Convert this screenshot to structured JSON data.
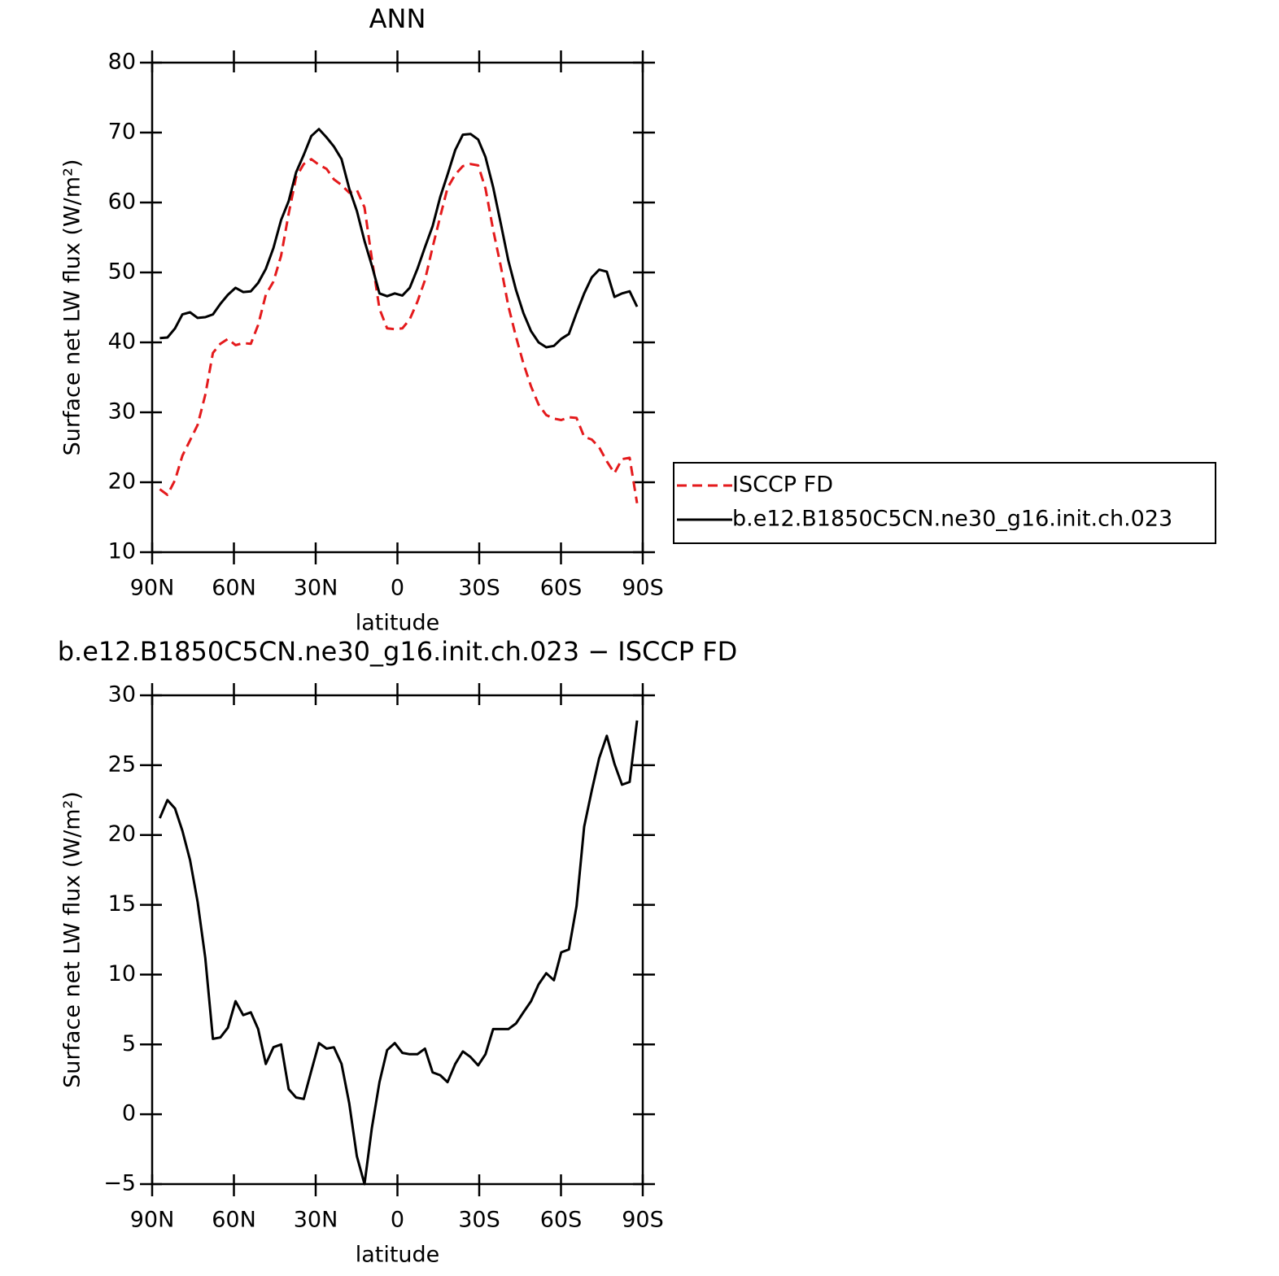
{
  "chart_data": [
    {
      "type": "line",
      "title": "ANN",
      "xlabel": "latitude",
      "ylabel": "Surface net LW flux (W/m²)",
      "x": [
        87.2,
        84.4,
        81.6,
        78.9,
        76.1,
        73.3,
        70.5,
        67.7,
        65.0,
        62.2,
        59.4,
        56.6,
        53.8,
        51.1,
        48.3,
        45.5,
        42.7,
        39.9,
        37.2,
        34.4,
        31.6,
        28.8,
        26.0,
        23.3,
        20.5,
        17.7,
        14.9,
        12.1,
        9.4,
        6.6,
        3.8,
        1.0,
        -1.8,
        -4.5,
        -7.3,
        -10.1,
        -12.9,
        -15.7,
        -18.4,
        -21.2,
        -24.0,
        -26.8,
        -29.6,
        -32.3,
        -35.1,
        -37.9,
        -40.7,
        -43.5,
        -46.2,
        -49.0,
        -51.8,
        -54.6,
        -57.4,
        -60.1,
        -62.9,
        -65.7,
        -68.5,
        -71.3,
        -74.0,
        -76.8,
        -79.6,
        -82.4,
        -85.2,
        -87.9
      ],
      "series": [
        {
          "name": "ISCCP FD",
          "color": "#e41a1c",
          "style": "dashed",
          "values": [
            19.0,
            18.2,
            20.3,
            23.8,
            26.0,
            28.2,
            32.5,
            38.5,
            39.8,
            40.5,
            39.6,
            39.9,
            39.8,
            42.5,
            46.8,
            48.7,
            52.4,
            58.4,
            63.6,
            65.5,
            66.2,
            65.4,
            64.8,
            63.3,
            62.5,
            61.4,
            61.8,
            59.3,
            52.0,
            44.8,
            42.0,
            41.9,
            42.0,
            43.3,
            45.8,
            48.9,
            53.6,
            58.0,
            62.1,
            64.0,
            65.2,
            65.5,
            65.3,
            62.0,
            56.1,
            50.9,
            45.2,
            40.8,
            37.0,
            33.7,
            31.1,
            29.6,
            29.1,
            28.9,
            29.3,
            29.2,
            26.5,
            26.1,
            25.0,
            23.0,
            21.3,
            23.3,
            23.5,
            17.0
          ]
        },
        {
          "name": "b.e12.B1850C5CN.ne30_g16.init.ch.023",
          "color": "#000000",
          "style": "solid",
          "values": [
            40.6,
            40.7,
            42.0,
            44.0,
            44.3,
            43.5,
            43.6,
            44.0,
            45.5,
            46.8,
            47.8,
            47.2,
            47.3,
            48.5,
            50.5,
            53.5,
            57.5,
            60.2,
            64.3,
            66.8,
            69.5,
            70.5,
            69.3,
            68.0,
            66.2,
            62.0,
            58.8,
            54.5,
            51.0,
            47.0,
            46.6,
            47.0,
            46.7,
            47.8,
            50.5,
            53.6,
            56.6,
            60.8,
            64.0,
            67.5,
            69.7,
            69.8,
            69.0,
            66.5,
            62.2,
            57.0,
            51.7,
            47.5,
            44.2,
            41.6,
            40.0,
            39.3,
            39.5,
            40.5,
            41.2,
            44.2,
            47.0,
            49.3,
            50.4,
            50.1,
            46.5,
            47.0,
            47.3,
            45.1
          ]
        }
      ],
      "xlim": [
        90,
        -90
      ],
      "xticks": [
        {
          "value": 90,
          "label": "90N"
        },
        {
          "value": 60,
          "label": "60N"
        },
        {
          "value": 30,
          "label": "30N"
        },
        0,
        {
          "value": -30,
          "label": "30S"
        },
        {
          "value": -60,
          "label": "60S"
        },
        {
          "value": -90,
          "label": "90S"
        }
      ],
      "ylim": [
        10,
        80
      ],
      "yticks": [
        10,
        20,
        30,
        40,
        50,
        60,
        70,
        80
      ],
      "legend": "right",
      "grid": false
    },
    {
      "type": "line",
      "title": "b.e12.B1850C5CN.ne30_g16.init.ch.023 − ISCCP FD",
      "xlabel": "latitude",
      "ylabel": "Surface net LW flux (W/m²)",
      "x": [
        87.2,
        84.4,
        81.6,
        78.9,
        76.1,
        73.3,
        70.5,
        67.7,
        65.0,
        62.2,
        59.4,
        56.6,
        53.8,
        51.1,
        48.3,
        45.5,
        42.7,
        39.9,
        37.2,
        34.4,
        31.6,
        28.8,
        26.0,
        23.3,
        20.5,
        17.7,
        14.9,
        12.1,
        9.4,
        6.6,
        3.8,
        1.0,
        -1.8,
        -4.5,
        -7.3,
        -10.1,
        -12.9,
        -15.7,
        -18.4,
        -21.2,
        -24.0,
        -26.8,
        -29.6,
        -32.3,
        -35.1,
        -37.9,
        -40.7,
        -43.5,
        -46.2,
        -49.0,
        -51.8,
        -54.6,
        -57.4,
        -60.1,
        -62.9,
        -65.7,
        -68.5,
        -71.3,
        -74.0,
        -76.8,
        -79.6,
        -82.4,
        -85.2,
        -87.9
      ],
      "values": [
        21.2,
        22.5,
        21.9,
        20.3,
        18.2,
        15.2,
        11.2,
        5.4,
        5.5,
        6.2,
        8.1,
        7.1,
        7.3,
        6.1,
        3.6,
        4.8,
        5.0,
        1.8,
        1.2,
        1.1,
        3.1,
        5.1,
        4.7,
        4.8,
        3.6,
        0.8,
        -3.0,
        -5.0,
        -1.0,
        2.3,
        4.6,
        5.1,
        4.4,
        4.3,
        4.3,
        4.7,
        3.0,
        2.8,
        2.3,
        3.6,
        4.5,
        4.1,
        3.5,
        4.3,
        6.1,
        6.1,
        6.1,
        6.5,
        7.3,
        8.1,
        9.3,
        10.1,
        9.6,
        11.6,
        11.8,
        14.9,
        20.6,
        23.2,
        25.5,
        27.1,
        25.1,
        23.6,
        23.8,
        28.2
      ],
      "color": "#000000",
      "style": "solid",
      "xlim": [
        90,
        -90
      ],
      "xticks": [
        {
          "value": 90,
          "label": "90N"
        },
        {
          "value": 60,
          "label": "60N"
        },
        {
          "value": 30,
          "label": "30N"
        },
        0,
        {
          "value": -30,
          "label": "30S"
        },
        {
          "value": -60,
          "label": "60S"
        },
        {
          "value": -90,
          "label": "90S"
        }
      ],
      "ylim": [
        -5,
        30
      ],
      "yticks": [
        {
          "value": -5,
          "label": "−5"
        },
        0,
        5,
        10,
        15,
        20,
        25,
        30
      ],
      "grid": false
    }
  ]
}
